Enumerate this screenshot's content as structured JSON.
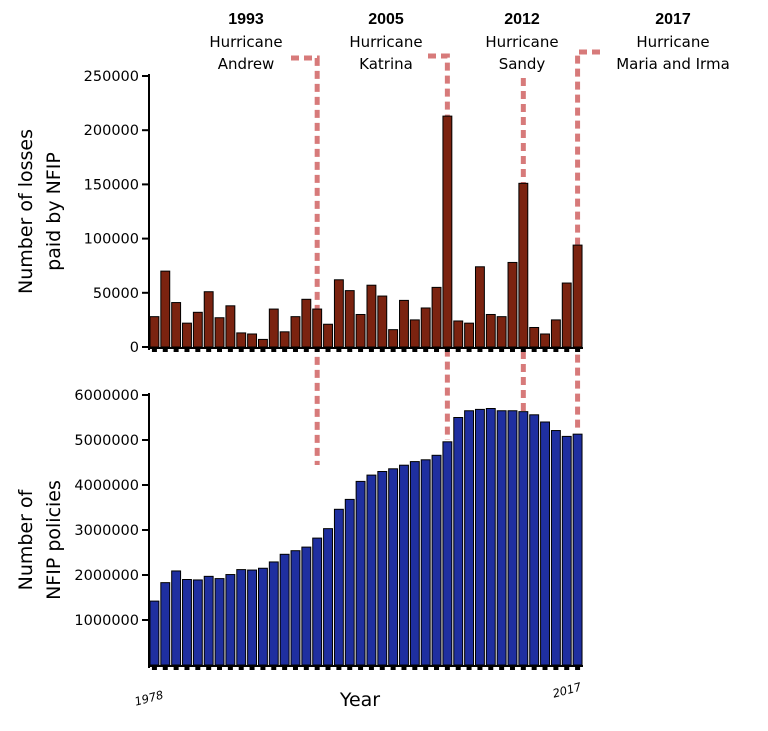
{
  "chart_data": [
    {
      "type": "bar",
      "ylabel_lines": [
        "Number of losses",
        "paid by NFIP"
      ],
      "ylim": [
        0,
        250000
      ],
      "yticks": [
        "0",
        "50000",
        "100000",
        "150000",
        "200000",
        "250000"
      ],
      "bar_color": "#7b2310",
      "x": [
        1978,
        1979,
        1980,
        1981,
        1982,
        1983,
        1984,
        1985,
        1986,
        1987,
        1988,
        1989,
        1990,
        1991,
        1992,
        1993,
        1994,
        1995,
        1996,
        1997,
        1998,
        1999,
        2000,
        2001,
        2002,
        2003,
        2004,
        2005,
        2006,
        2007,
        2008,
        2009,
        2010,
        2011,
        2012,
        2013,
        2014,
        2015,
        2016,
        2017
      ],
      "values": [
        28000,
        70000,
        41000,
        22000,
        32000,
        51000,
        27000,
        38000,
        13000,
        12000,
        7000,
        35000,
        14000,
        28000,
        44000,
        35000,
        21000,
        62000,
        52000,
        30000,
        57000,
        47000,
        16000,
        43000,
        25000,
        36000,
        55000,
        213000,
        24000,
        22000,
        74000,
        30000,
        28000,
        78000,
        151000,
        18000,
        12000,
        25000,
        59000,
        94000
      ]
    },
    {
      "type": "bar",
      "ylabel_lines": [
        "Number of",
        "NFIP policies"
      ],
      "ylim": [
        0,
        6000000
      ],
      "yticks": [
        "1000000",
        "2000000",
        "3000000",
        "4000000",
        "5000000",
        "6000000"
      ],
      "bar_color": "#1f2fa0",
      "xlabel": "Year",
      "xtick_labels": [
        "1978",
        "2017"
      ],
      "x": [
        1978,
        1979,
        1980,
        1981,
        1982,
        1983,
        1984,
        1985,
        1986,
        1987,
        1988,
        1989,
        1990,
        1991,
        1992,
        1993,
        1994,
        1995,
        1996,
        1997,
        1998,
        1999,
        2000,
        2001,
        2002,
        2003,
        2004,
        2005,
        2006,
        2007,
        2008,
        2009,
        2010,
        2011,
        2012,
        2013,
        2014,
        2015,
        2016,
        2017
      ],
      "values": [
        1420000,
        1830000,
        2090000,
        1900000,
        1890000,
        1970000,
        1920000,
        2010000,
        2120000,
        2110000,
        2150000,
        2290000,
        2460000,
        2540000,
        2620000,
        2820000,
        3030000,
        3460000,
        3680000,
        4080000,
        4220000,
        4300000,
        4360000,
        4440000,
        4520000,
        4560000,
        4660000,
        4960000,
        5500000,
        5650000,
        5680000,
        5700000,
        5650000,
        5650000,
        5630000,
        5560000,
        5400000,
        5210000,
        5080000,
        5130000
      ]
    }
  ],
  "annotations": [
    {
      "year": "1993",
      "line1": "Hurricane",
      "line2": "Andrew",
      "event_year": 1993,
      "color": "#d77a7a"
    },
    {
      "year": "2005",
      "line1": "Hurricane",
      "line2": "Katrina",
      "event_year": 2005,
      "color": "#d77a7a"
    },
    {
      "year": "2012",
      "line1": "Hurricane",
      "line2": "Sandy",
      "event_year": 2012,
      "color": "#d77a7a"
    },
    {
      "year": "2017",
      "line1": "Hurricane",
      "line2": "Maria and Irma",
      "event_year": 2017,
      "color": "#d77a7a"
    }
  ]
}
